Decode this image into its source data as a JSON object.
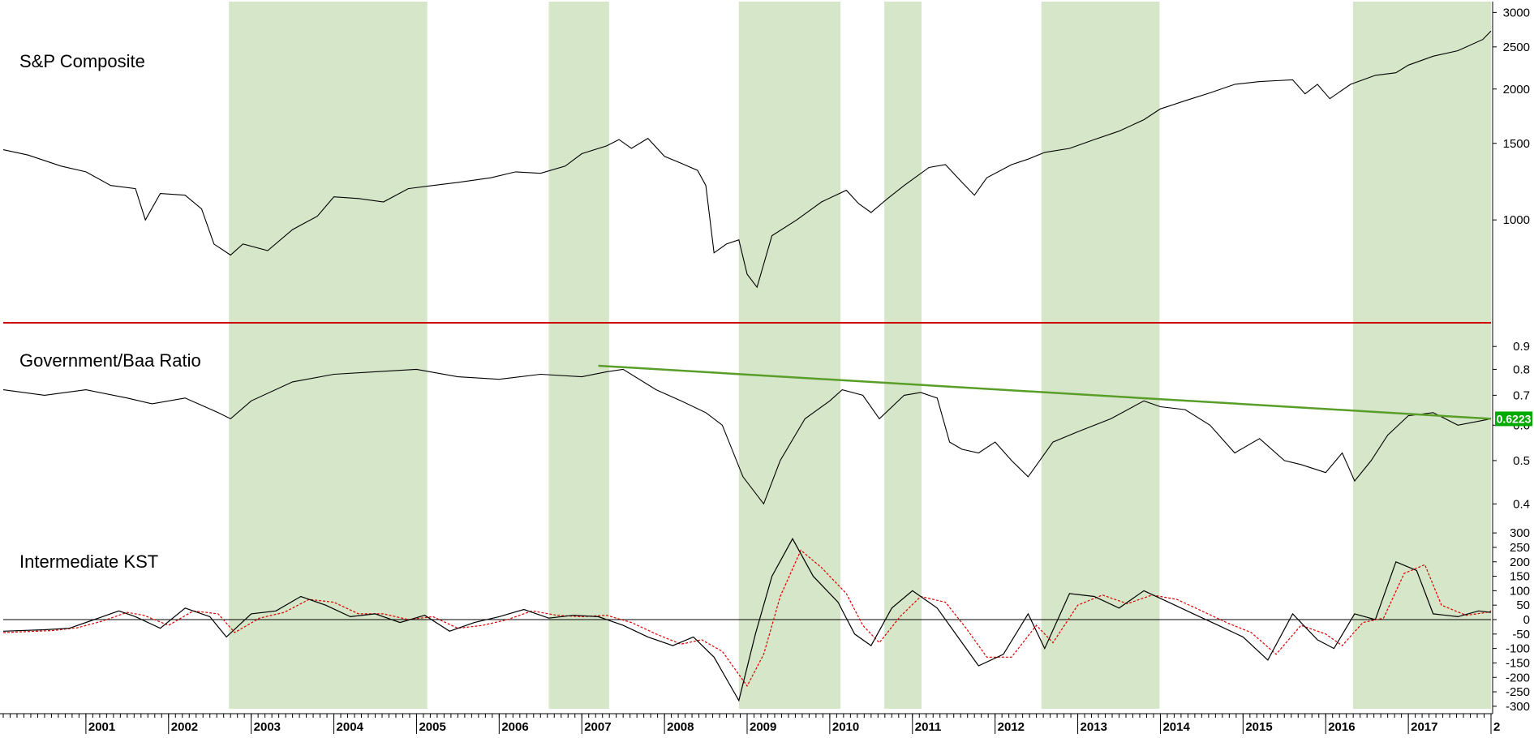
{
  "colors": {
    "shade": "#d6e6c8",
    "title": "#1414e6",
    "sp_line": "#000000",
    "divider": "#cc0000",
    "trendline": "#5a9e2a",
    "ratio_line": "#000000",
    "kst": "#000000",
    "kst_signal": "#dd0000",
    "value_badge_bg": "#00aa00",
    "value_badge_text": "#ffffff"
  },
  "chart_data": [
    {
      "type": "line",
      "title": "S&P Composite",
      "y_scale": "log",
      "ylim": [
        580,
        3150
      ],
      "yticks": [
        1000,
        1500,
        2000,
        2500,
        3000
      ],
      "ytick_labels": [
        "1000",
        "1500",
        "2000",
        "2500",
        "3000"
      ],
      "series": [
        {
          "x": [
            2000.0,
            2000.3,
            2000.7,
            2001.0,
            2001.3,
            2001.6,
            2001.72,
            2001.9,
            2002.2,
            2002.4,
            2002.55,
            2002.75,
            2002.9,
            2003.2,
            2003.5,
            2003.8,
            2004.0,
            2004.3,
            2004.6,
            2004.9,
            2005.2,
            2005.5,
            2005.9,
            2006.2,
            2006.5,
            2006.8,
            2007.0,
            2007.3,
            2007.45,
            2007.6,
            2007.8,
            2008.0,
            2008.2,
            2008.4,
            2008.5,
            2008.6,
            2008.75,
            2008.9,
            2009.0,
            2009.12,
            2009.3,
            2009.6,
            2009.9,
            2010.2,
            2010.35,
            2010.5,
            2010.7,
            2010.9,
            2011.2,
            2011.4,
            2011.6,
            2011.75,
            2011.9,
            2012.2,
            2012.4,
            2012.6,
            2012.9,
            2013.2,
            2013.5,
            2013.8,
            2014.0,
            2014.3,
            2014.6,
            2014.9,
            2015.2,
            2015.4,
            2015.6,
            2015.75,
            2015.9,
            2016.05,
            2016.3,
            2016.6,
            2016.85,
            2017.0,
            2017.3,
            2017.6,
            2017.9,
            2018.0
          ],
          "values": [
            1450,
            1410,
            1330,
            1290,
            1200,
            1180,
            1000,
            1150,
            1140,
            1060,
            880,
            830,
            880,
            850,
            950,
            1020,
            1130,
            1120,
            1100,
            1180,
            1200,
            1220,
            1250,
            1290,
            1280,
            1330,
            1420,
            1480,
            1530,
            1460,
            1540,
            1400,
            1350,
            1300,
            1200,
            840,
            880,
            900,
            750,
            700,
            920,
            1000,
            1100,
            1170,
            1090,
            1040,
            1120,
            1200,
            1320,
            1340,
            1220,
            1140,
            1250,
            1340,
            1380,
            1430,
            1460,
            1530,
            1600,
            1700,
            1800,
            1880,
            1960,
            2050,
            2080,
            2090,
            2100,
            1950,
            2050,
            1900,
            2050,
            2150,
            2180,
            2270,
            2380,
            2450,
            2600,
            2720
          ]
        }
      ]
    },
    {
      "type": "line",
      "title": "Government/Baa Ratio",
      "y_scale": "log",
      "ylim": [
        0.37,
        1.0
      ],
      "yticks": [
        0.4,
        0.5,
        0.6,
        0.7,
        0.8,
        0.9
      ],
      "ytick_labels": [
        "0.4",
        "0.5",
        "0.6",
        "0.7",
        "0.8",
        "0.9"
      ],
      "last_value_label": "0.6223",
      "series": [
        {
          "x": [
            2000.0,
            2000.5,
            2001.0,
            2001.5,
            2001.8,
            2002.2,
            2002.6,
            2002.75,
            2003.0,
            2003.5,
            2004.0,
            2004.5,
            2005.0,
            2005.5,
            2006.0,
            2006.5,
            2007.0,
            2007.3,
            2007.5,
            2007.9,
            2008.2,
            2008.5,
            2008.7,
            2008.95,
            2009.2,
            2009.4,
            2009.7,
            2010.0,
            2010.15,
            2010.4,
            2010.6,
            2010.9,
            2011.1,
            2011.3,
            2011.45,
            2011.6,
            2011.8,
            2012.0,
            2012.2,
            2012.4,
            2012.7,
            2013.0,
            2013.4,
            2013.8,
            2014.0,
            2014.3,
            2014.6,
            2014.9,
            2015.2,
            2015.5,
            2015.7,
            2016.0,
            2016.2,
            2016.35,
            2016.55,
            2016.75,
            2017.0,
            2017.3,
            2017.6,
            2018.0
          ],
          "values": [
            0.72,
            0.7,
            0.72,
            0.69,
            0.67,
            0.69,
            0.64,
            0.62,
            0.68,
            0.75,
            0.78,
            0.79,
            0.8,
            0.77,
            0.76,
            0.78,
            0.77,
            0.79,
            0.8,
            0.72,
            0.68,
            0.64,
            0.6,
            0.46,
            0.4,
            0.5,
            0.62,
            0.68,
            0.72,
            0.7,
            0.62,
            0.7,
            0.71,
            0.69,
            0.55,
            0.53,
            0.52,
            0.55,
            0.5,
            0.46,
            0.55,
            0.58,
            0.62,
            0.68,
            0.66,
            0.65,
            0.6,
            0.52,
            0.56,
            0.5,
            0.49,
            0.47,
            0.52,
            0.45,
            0.5,
            0.57,
            0.63,
            0.64,
            0.6,
            0.62
          ]
        }
      ],
      "trendline": {
        "x": [
          2007.2,
          2018.0
        ],
        "values": [
          0.815,
          0.62
        ]
      }
    },
    {
      "type": "line",
      "title": "Intermediate KST",
      "ylim": [
        -320,
        320
      ],
      "yticks": [
        300,
        250,
        200,
        150,
        100,
        50,
        0,
        -50,
        -100,
        -150,
        -200,
        -250,
        -300
      ],
      "ytick_labels": [
        "300",
        "250",
        "200",
        "150",
        "100",
        "50",
        "0",
        "-50",
        "-100",
        "-150",
        "-200",
        "-250",
        "-300"
      ],
      "zero_line": 0,
      "series": [
        {
          "x": [
            2000.0,
            2000.5,
            2000.8,
            2001.1,
            2001.4,
            2001.6,
            2001.9,
            2002.2,
            2002.5,
            2002.7,
            2003.0,
            2003.3,
            2003.6,
            2003.9,
            2004.2,
            2004.5,
            2004.8,
            2005.1,
            2005.4,
            2005.7,
            2006.0,
            2006.3,
            2006.6,
            2006.9,
            2007.2,
            2007.5,
            2007.8,
            2008.1,
            2008.35,
            2008.6,
            2008.9,
            2009.1,
            2009.3,
            2009.55,
            2009.8,
            2010.1,
            2010.3,
            2010.5,
            2010.75,
            2011.0,
            2011.3,
            2011.55,
            2011.8,
            2012.1,
            2012.4,
            2012.6,
            2012.9,
            2013.2,
            2013.5,
            2013.8,
            2014.1,
            2014.4,
            2014.7,
            2015.0,
            2015.3,
            2015.6,
            2015.9,
            2016.1,
            2016.35,
            2016.6,
            2016.85,
            2017.1,
            2017.3,
            2017.6,
            2017.85,
            2018.0
          ],
          "values": [
            -40,
            -35,
            -30,
            0,
            30,
            10,
            -30,
            40,
            10,
            -60,
            20,
            30,
            80,
            50,
            10,
            20,
            -10,
            15,
            -40,
            -10,
            10,
            35,
            5,
            15,
            10,
            -20,
            -60,
            -90,
            -60,
            -130,
            -280,
            -50,
            150,
            280,
            150,
            60,
            -50,
            -90,
            40,
            100,
            40,
            -60,
            -160,
            -120,
            20,
            -100,
            90,
            80,
            40,
            100,
            60,
            20,
            -20,
            -60,
            -140,
            20,
            -70,
            -100,
            20,
            0,
            200,
            170,
            20,
            10,
            30,
            25
          ]
        },
        {
          "name_hidden": true,
          "x": [
            2000.0,
            2000.6,
            2000.9,
            2001.2,
            2001.5,
            2001.7,
            2002.0,
            2002.3,
            2002.6,
            2002.8,
            2003.1,
            2003.4,
            2003.7,
            2004.0,
            2004.3,
            2004.6,
            2004.9,
            2005.2,
            2005.5,
            2005.8,
            2006.1,
            2006.4,
            2006.7,
            2007.0,
            2007.3,
            2007.6,
            2007.9,
            2008.2,
            2008.45,
            2008.7,
            2009.0,
            2009.2,
            2009.4,
            2009.65,
            2009.9,
            2010.2,
            2010.4,
            2010.6,
            2010.85,
            2011.1,
            2011.4,
            2011.65,
            2011.9,
            2012.2,
            2012.5,
            2012.7,
            2013.0,
            2013.3,
            2013.6,
            2013.9,
            2014.2,
            2014.5,
            2014.8,
            2015.1,
            2015.4,
            2015.7,
            2016.0,
            2016.2,
            2016.45,
            2016.7,
            2016.95,
            2017.2,
            2017.4,
            2017.7,
            2017.95,
            2018.0
          ],
          "values": [
            -45,
            -38,
            -28,
            -5,
            25,
            15,
            -20,
            30,
            20,
            -45,
            5,
            25,
            70,
            60,
            20,
            20,
            0,
            10,
            -30,
            -20,
            0,
            30,
            15,
            10,
            15,
            -10,
            -50,
            -85,
            -70,
            -110,
            -230,
            -120,
            80,
            240,
            180,
            90,
            -20,
            -80,
            10,
            80,
            60,
            -30,
            -130,
            -130,
            -20,
            -80,
            50,
            85,
            55,
            85,
            70,
            30,
            -10,
            -45,
            -120,
            -20,
            -50,
            -90,
            -10,
            5,
            160,
            190,
            50,
            15,
            25,
            30
          ]
        }
      ]
    }
  ],
  "x_axis": {
    "range": [
      2000.0,
      2018.0
    ],
    "labels": [
      "2001",
      "2002",
      "2003",
      "2004",
      "2005",
      "2006",
      "2007",
      "2008",
      "2009",
      "2010",
      "2011",
      "2012",
      "2013",
      "2014",
      "2015",
      "2016",
      "2017",
      "2"
    ]
  },
  "shaded_periods": [
    [
      2002.73,
      2005.13
    ],
    [
      2006.6,
      2007.33
    ],
    [
      2008.9,
      2010.13
    ],
    [
      2010.66,
      2011.11
    ],
    [
      2012.56,
      2013.99
    ],
    [
      2016.33,
      2018.0
    ]
  ]
}
